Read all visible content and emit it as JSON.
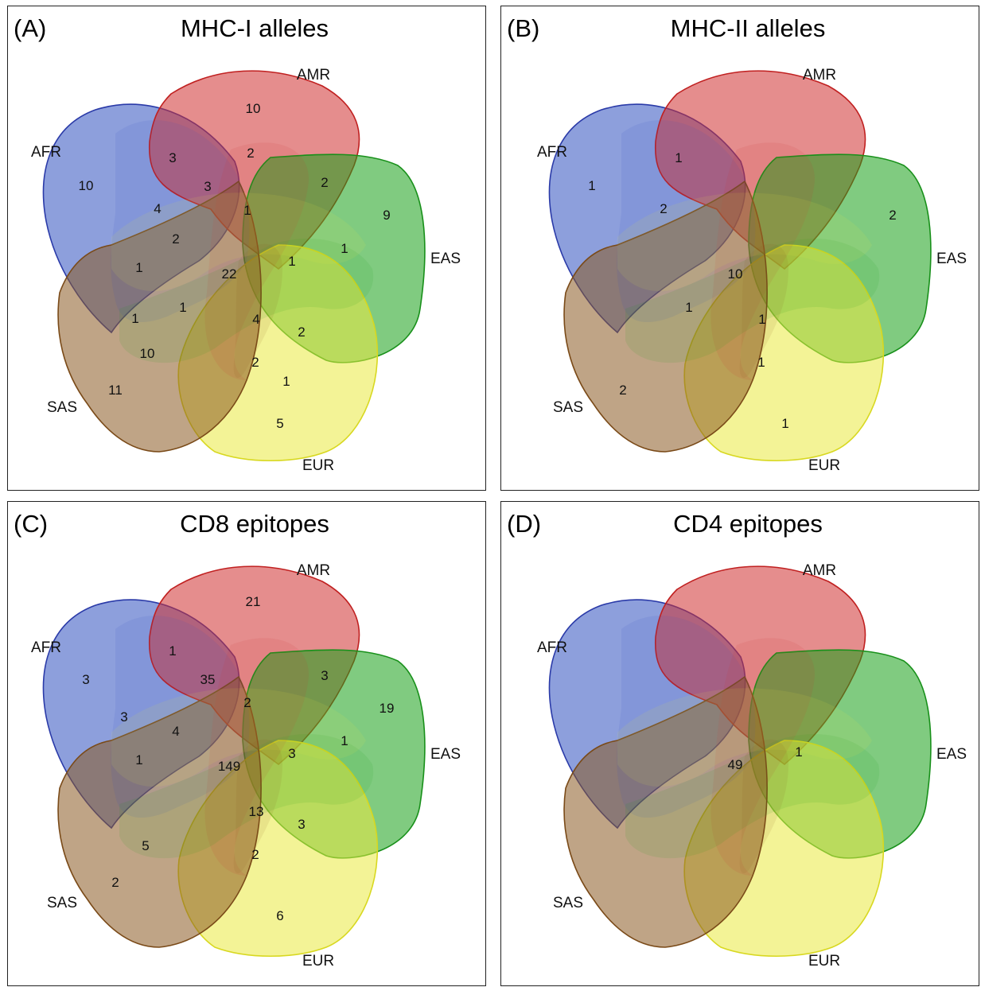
{
  "sets": [
    {
      "name": "AFR",
      "fill": "#3050c0",
      "stroke": "#2a3aa8"
    },
    {
      "name": "AMR",
      "fill": "#d03030",
      "stroke": "#c02020"
    },
    {
      "name": "EAS",
      "fill": "#18a018",
      "stroke": "#18901a"
    },
    {
      "name": "EUR",
      "fill": "#eaea40",
      "stroke": "#d8d820"
    },
    {
      "name": "SAS",
      "fill": "#8a5a22",
      "stroke": "#7a4a18"
    }
  ],
  "panels": [
    {
      "letter": "(A)",
      "title": "MHC-I alleles",
      "counts": [
        {
          "region": "AMR",
          "value": "10"
        },
        {
          "region": "AFR",
          "value": "10"
        },
        {
          "region": "EAS",
          "value": "9"
        },
        {
          "region": "SAS",
          "value": "11"
        },
        {
          "region": "EUR",
          "value": "5"
        },
        {
          "region": "AFR∩AMR",
          "value": "3"
        },
        {
          "region": "AFR∩AMR∩SAS",
          "value": "2"
        },
        {
          "region": "AMR∩EAS",
          "value": "2"
        },
        {
          "region": "AFR∩AMR∩EUR",
          "value": "3"
        },
        {
          "region": "AMR∩EAS∩SAS",
          "value": "1"
        },
        {
          "region": "AFR∩EUR",
          "value": "4"
        },
        {
          "region": "AFR∩AMR∩EUR∩SAS",
          "value": "2"
        },
        {
          "region": "EAS∩EUR",
          "value": "1"
        },
        {
          "region": "AFR∩EUR∩SAS",
          "value": "1"
        },
        {
          "region": "AFR∩AMR∩EAS∩EUR∩SAS",
          "value": "22"
        },
        {
          "region": "AMR∩EAS∩EUR∩SAS",
          "value": "1"
        },
        {
          "region": "AFR∩EAS∩SAS",
          "value": "1"
        },
        {
          "region": "AFR∩EAS∩EUR∩SAS",
          "value": "1"
        },
        {
          "region": "AFR∩AMR∩EAS∩EUR",
          "value": "4"
        },
        {
          "region": "AMR∩EAS∩EUR",
          "value": "2"
        },
        {
          "region": "EAS∩SAS",
          "value": "10"
        },
        {
          "region": "AMR∩EUR∩SAS",
          "value": "2"
        },
        {
          "region": "AMR∩EUR",
          "value": "1"
        }
      ]
    },
    {
      "letter": "(B)",
      "title": "MHC-II alleles",
      "counts": [
        {
          "region": "AFR",
          "value": "1"
        },
        {
          "region": "AFR∩AMR",
          "value": "1"
        },
        {
          "region": "EAS",
          "value": "2"
        },
        {
          "region": "AFR∩EUR",
          "value": "2"
        },
        {
          "region": "AFR∩AMR∩EAS∩EUR∩SAS",
          "value": "10"
        },
        {
          "region": "AFR∩EAS∩EUR∩SAS",
          "value": "1"
        },
        {
          "region": "AFR∩AMR∩EAS∩EUR",
          "value": "1"
        },
        {
          "region": "AMR∩EUR∩SAS",
          "value": "1"
        },
        {
          "region": "SAS",
          "value": "2"
        },
        {
          "region": "EUR",
          "value": "1"
        }
      ]
    },
    {
      "letter": "(C)",
      "title": "CD8 epitopes",
      "counts": [
        {
          "region": "AMR",
          "value": "21"
        },
        {
          "region": "AFR∩AMR",
          "value": "1"
        },
        {
          "region": "AFR",
          "value": "3"
        },
        {
          "region": "AFR∩AMR∩EUR",
          "value": "35"
        },
        {
          "region": "AMR∩EAS",
          "value": "3"
        },
        {
          "region": "EAS",
          "value": "19"
        },
        {
          "region": "AMR∩EAS∩SAS",
          "value": "2"
        },
        {
          "region": "AFR∩EUR",
          "value": "3"
        },
        {
          "region": "AFR∩AMR∩EUR∩SAS",
          "value": "4"
        },
        {
          "region": "EAS∩EUR",
          "value": "1"
        },
        {
          "region": "AFR∩EUR∩SAS",
          "value": "1"
        },
        {
          "region": "AFR∩AMR∩EAS∩EUR∩SAS",
          "value": "149"
        },
        {
          "region": "AMR∩EAS∩EUR∩SAS",
          "value": "3"
        },
        {
          "region": "AFR∩AMR∩EAS∩EUR",
          "value": "13"
        },
        {
          "region": "AMR∩EAS∩EUR",
          "value": "3"
        },
        {
          "region": "EAS∩SAS",
          "value": "5"
        },
        {
          "region": "AMR∩EUR∩SAS",
          "value": "2"
        },
        {
          "region": "SAS",
          "value": "2"
        },
        {
          "region": "EUR",
          "value": "6"
        }
      ]
    },
    {
      "letter": "(D)",
      "title": "CD4 epitopes",
      "counts": [
        {
          "region": "AFR∩AMR∩EAS∩EUR∩SAS",
          "value": "49"
        },
        {
          "region": "AMR∩EAS∩EUR∩SAS",
          "value": "1"
        }
      ]
    }
  ]
}
